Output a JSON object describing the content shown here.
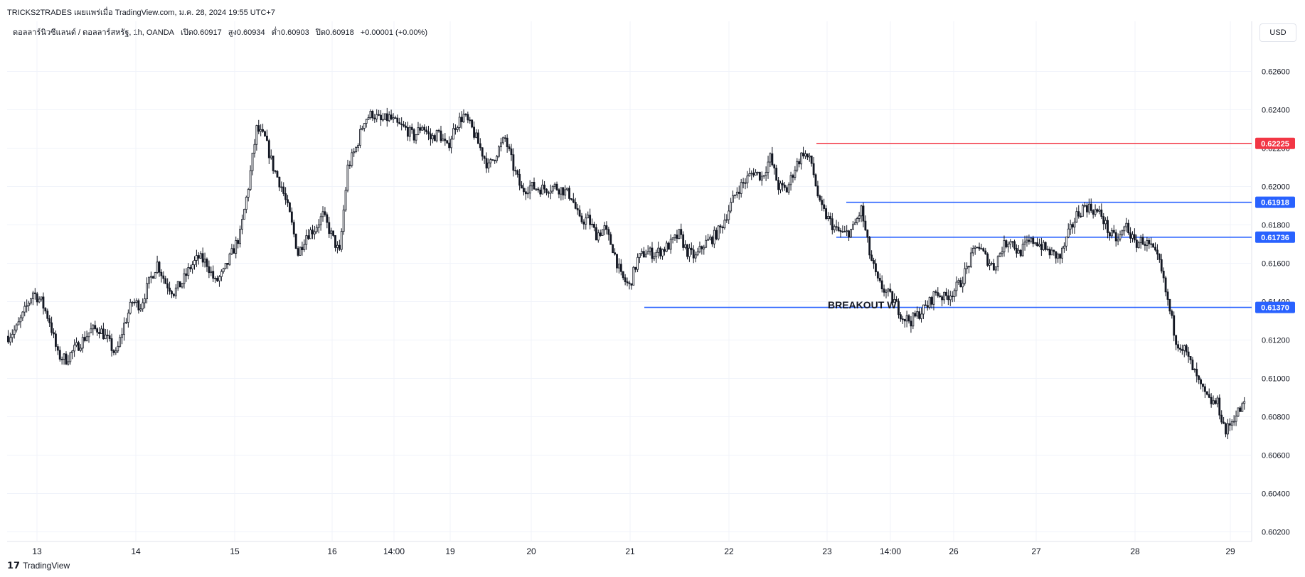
{
  "header": {
    "title": "TRICKS2TRADES เผยแพร่เมื่อ TradingView.com, ม.ค. 28, 2024 19:55 UTC+7",
    "symbol": "ดอลลาร์นิวซีแลนด์ / ดอลลาร์สหรัฐ, 1h, OANDA",
    "open": "เปิด0.60917",
    "high": "สูง0.60934",
    "low": "ต่ำ0.60903",
    "close": "ปิด0.60918",
    "change": "+0.00001 (+0.00%)"
  },
  "currency_button": "USD",
  "footer": {
    "brand": "TradingView"
  },
  "colors": {
    "red_line": "#f23645",
    "blue_line": "#2962ff",
    "candle": "#131722",
    "grid": "#f0f3fa"
  },
  "chart_data": {
    "type": "candlestick",
    "y_ticks": [
      "0.62600",
      "0.62400",
      "0.62200",
      "0.62000",
      "0.61800",
      "0.61600",
      "0.61400",
      "0.61200",
      "0.61000",
      "0.60800",
      "0.60600",
      "0.60400",
      "0.60200"
    ],
    "x_ticks": [
      "13",
      "14",
      "15",
      "16",
      "14:00",
      "19",
      "20",
      "21",
      "22",
      "23",
      "14:00",
      "26",
      "27",
      "28",
      "29"
    ],
    "ylim": [
      0.6015,
      0.6275
    ],
    "levels": [
      {
        "price": 0.62225,
        "label": "0.62225",
        "color": "#f23645",
        "from_day": "22"
      },
      {
        "price": 0.61918,
        "label": "0.61918",
        "color": "#2962ff",
        "from_day": "23"
      },
      {
        "price": 0.61736,
        "label": "0.61736",
        "color": "#2962ff",
        "from_day": "23"
      },
      {
        "price": 0.6137,
        "label": "0.61370",
        "color": "#2962ff",
        "from_day": "21"
      }
    ],
    "annotation": "BREAKOUT W",
    "close_path": [
      [
        0,
        0.6122
      ],
      [
        4,
        0.6126
      ],
      [
        8,
        0.6135
      ],
      [
        12,
        0.6145
      ],
      [
        16,
        0.614
      ],
      [
        20,
        0.613
      ],
      [
        24,
        0.6112
      ],
      [
        28,
        0.611
      ],
      [
        32,
        0.6115
      ],
      [
        36,
        0.612
      ],
      [
        40,
        0.6125
      ],
      [
        44,
        0.6126
      ],
      [
        48,
        0.612
      ],
      [
        52,
        0.6112
      ],
      [
        56,
        0.6128
      ],
      [
        60,
        0.614
      ],
      [
        64,
        0.6138
      ],
      [
        68,
        0.615
      ],
      [
        72,
        0.616
      ],
      [
        76,
        0.615
      ],
      [
        80,
        0.6145
      ],
      [
        84,
        0.615
      ],
      [
        88,
        0.6158
      ],
      [
        92,
        0.6163
      ],
      [
        96,
        0.616
      ],
      [
        100,
        0.615
      ],
      [
        104,
        0.6155
      ],
      [
        108,
        0.6165
      ],
      [
        112,
        0.6175
      ],
      [
        116,
        0.62
      ],
      [
        120,
        0.623
      ],
      [
        124,
        0.6225
      ],
      [
        128,
        0.621
      ],
      [
        132,
        0.62
      ],
      [
        136,
        0.6185
      ],
      [
        140,
        0.6165
      ],
      [
        144,
        0.6175
      ],
      [
        148,
        0.6178
      ],
      [
        152,
        0.6185
      ],
      [
        156,
        0.6175
      ],
      [
        160,
        0.6165
      ],
      [
        164,
        0.621
      ],
      [
        168,
        0.622
      ],
      [
        172,
        0.6235
      ],
      [
        176,
        0.6238
      ],
      [
        180,
        0.6234
      ],
      [
        184,
        0.6236
      ],
      [
        188,
        0.6232
      ],
      [
        192,
        0.623
      ],
      [
        196,
        0.6226
      ],
      [
        200,
        0.6232
      ],
      [
        204,
        0.6225
      ],
      [
        208,
        0.6228
      ],
      [
        212,
        0.622
      ],
      [
        216,
        0.6232
      ],
      [
        220,
        0.6237
      ],
      [
        224,
        0.623
      ],
      [
        228,
        0.622
      ],
      [
        232,
        0.621
      ],
      [
        236,
        0.6218
      ],
      [
        240,
        0.6225
      ],
      [
        244,
        0.621
      ],
      [
        248,
        0.6198
      ],
      [
        252,
        0.62
      ],
      [
        256,
        0.6199
      ],
      [
        260,
        0.6199
      ],
      [
        264,
        0.62
      ],
      [
        268,
        0.6198
      ],
      [
        272,
        0.6195
      ],
      [
        276,
        0.6182
      ],
      [
        280,
        0.6183
      ],
      [
        284,
        0.6175
      ],
      [
        288,
        0.6178
      ],
      [
        292,
        0.6168
      ],
      [
        296,
        0.6153
      ],
      [
        300,
        0.6148
      ],
      [
        304,
        0.6162
      ],
      [
        308,
        0.6166
      ],
      [
        312,
        0.6165
      ],
      [
        316,
        0.6167
      ],
      [
        320,
        0.617
      ],
      [
        324,
        0.6175
      ],
      [
        328,
        0.6166
      ],
      [
        332,
        0.6163
      ],
      [
        336,
        0.617
      ],
      [
        340,
        0.6173
      ],
      [
        344,
        0.6178
      ],
      [
        348,
        0.6188
      ],
      [
        352,
        0.6198
      ],
      [
        356,
        0.6203
      ],
      [
        360,
        0.6208
      ],
      [
        364,
        0.6205
      ],
      [
        368,
        0.6215
      ],
      [
        372,
        0.62
      ],
      [
        376,
        0.6198
      ],
      [
        380,
        0.621
      ],
      [
        384,
        0.6218
      ],
      [
        388,
        0.6212
      ],
      [
        392,
        0.619
      ],
      [
        396,
        0.6183
      ],
      [
        400,
        0.6177
      ],
      [
        404,
        0.6175
      ],
      [
        408,
        0.6178
      ],
      [
        412,
        0.6188
      ],
      [
        416,
        0.6165
      ],
      [
        420,
        0.615
      ],
      [
        424,
        0.6145
      ],
      [
        428,
        0.614
      ],
      [
        432,
        0.6132
      ],
      [
        436,
        0.613
      ],
      [
        440,
        0.6134
      ],
      [
        444,
        0.6138
      ],
      [
        448,
        0.6145
      ],
      [
        452,
        0.6142
      ],
      [
        456,
        0.6145
      ],
      [
        460,
        0.615
      ],
      [
        464,
        0.616
      ],
      [
        468,
        0.617
      ],
      [
        472,
        0.6163
      ],
      [
        476,
        0.6158
      ],
      [
        480,
        0.6168
      ],
      [
        484,
        0.6173
      ],
      [
        488,
        0.6165
      ],
      [
        492,
        0.617
      ],
      [
        496,
        0.6172
      ],
      [
        500,
        0.6168
      ],
      [
        504,
        0.6165
      ],
      [
        508,
        0.6163
      ],
      [
        512,
        0.6175
      ],
      [
        516,
        0.6185
      ],
      [
        520,
        0.619
      ],
      [
        524,
        0.6188
      ],
      [
        528,
        0.6185
      ],
      [
        532,
        0.6175
      ],
      [
        536,
        0.6172
      ],
      [
        540,
        0.618
      ],
      [
        544,
        0.617
      ],
      [
        548,
        0.6172
      ],
      [
        552,
        0.6168
      ],
      [
        556,
        0.616
      ],
      [
        560,
        0.614
      ],
      [
        564,
        0.612
      ],
      [
        568,
        0.6115
      ],
      [
        572,
        0.6105
      ],
      [
        576,
        0.6095
      ],
      [
        580,
        0.6088
      ],
      [
        584,
        0.6087
      ],
      [
        588,
        0.6072
      ],
      [
        592,
        0.608
      ],
      [
        596,
        0.6085
      ],
      [
        599,
        0.6092
      ]
    ]
  }
}
